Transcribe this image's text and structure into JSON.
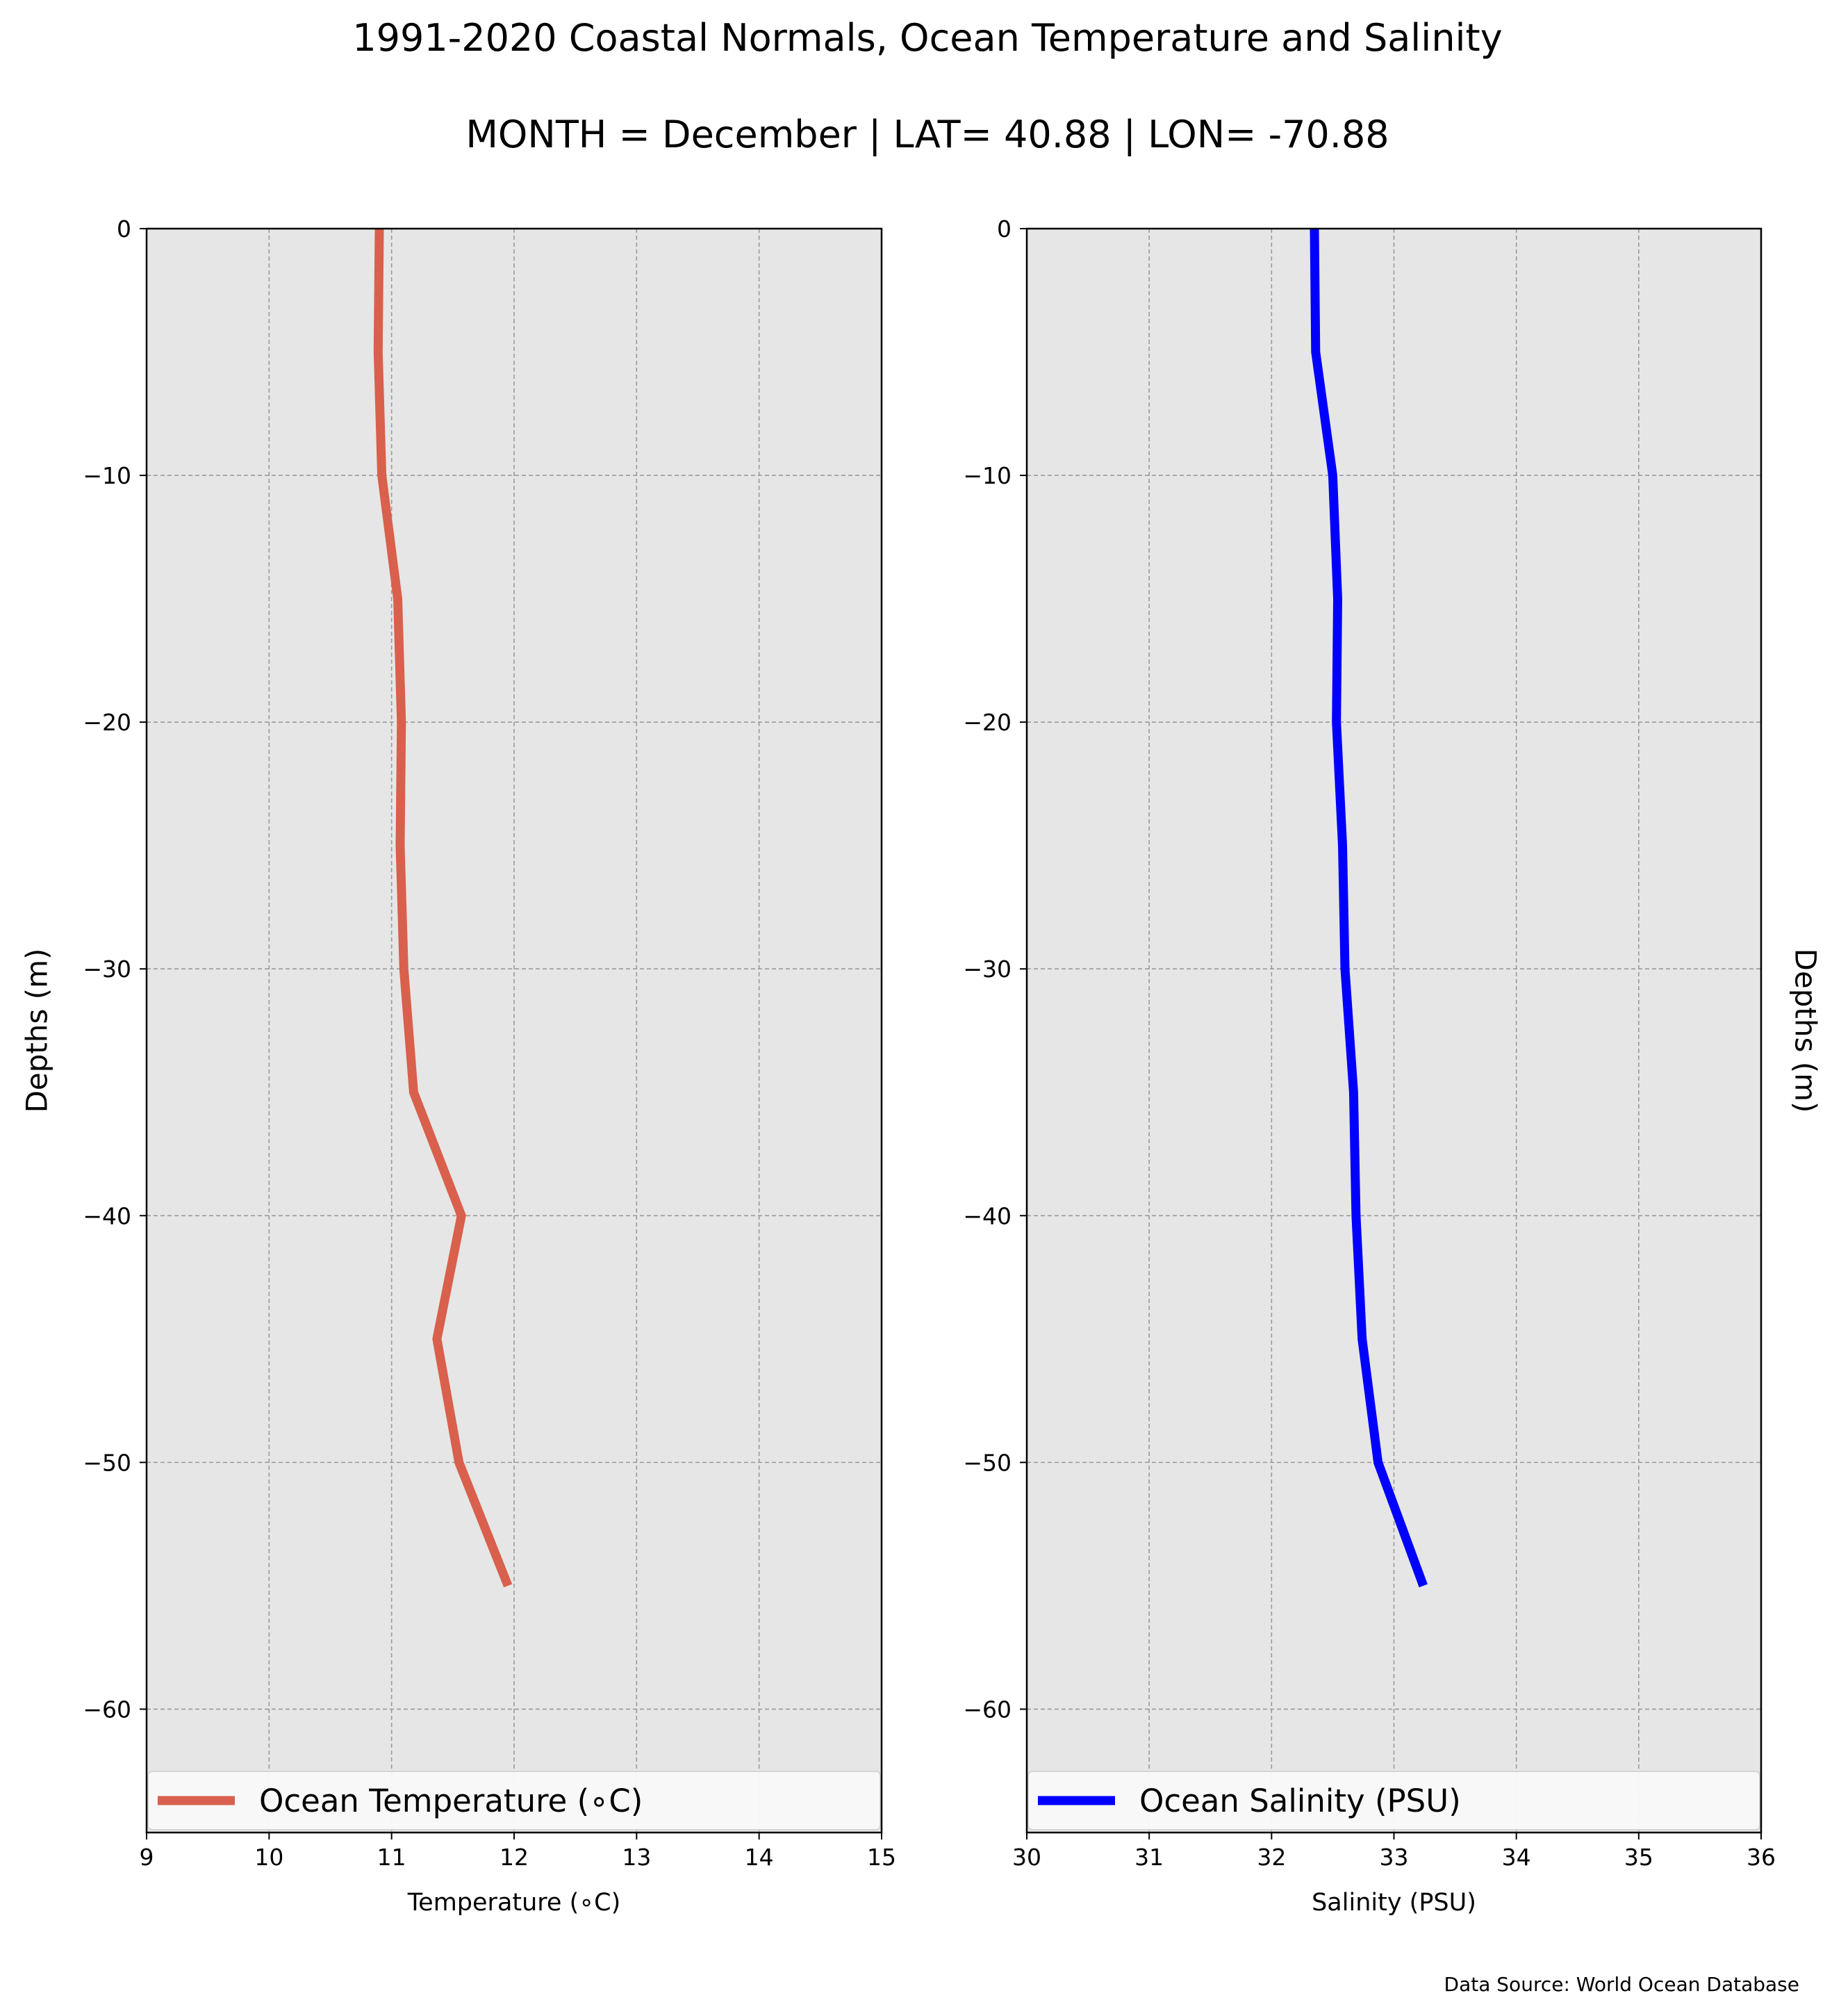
{
  "title": "1991-2020 Coastal Normals, Ocean Temperature and Salinity",
  "subtitle": "MONTH = December | LAT= 40.88 | LON= -70.88",
  "source": "Data Source: World Ocean Database",
  "chart_data": [
    {
      "type": "line",
      "orientation": "depth-profile",
      "xlabel": "Temperature ($^\\circ$C)",
      "xlabel_display": "Temperature (∘C)",
      "ylabel": "Depths (m)",
      "ylabel_side": "left",
      "xlim": [
        9,
        15
      ],
      "ylim": [
        -65,
        0
      ],
      "xticks": [
        9,
        10,
        11,
        12,
        13,
        14,
        15
      ],
      "yticks": [
        0,
        -10,
        -20,
        -30,
        -40,
        -50,
        -60
      ],
      "xtick_labels": [
        "9",
        "10",
        "11",
        "12",
        "13",
        "14",
        "15"
      ],
      "ytick_labels": [
        "0",
        "−10",
        "−20",
        "−30",
        "−40",
        "−50",
        "−60"
      ],
      "grid": true,
      "legend_position": "bottom",
      "series": [
        {
          "name": "Ocean Temperature (∘C)",
          "color": "#d9604c",
          "x": [
            10.9,
            10.89,
            10.92,
            11.05,
            11.08,
            11.07,
            11.1,
            11.18,
            11.57,
            11.37,
            11.55,
            11.95
          ],
          "y": [
            0,
            -5,
            -10,
            -15,
            -20,
            -25,
            -30,
            -35,
            -40,
            -45,
            -50,
            -55
          ]
        }
      ]
    },
    {
      "type": "line",
      "orientation": "depth-profile",
      "xlabel": "Salinity (PSU)",
      "ylabel": "Depths (m)",
      "ylabel_side": "right",
      "xlim": [
        30,
        36
      ],
      "ylim": [
        -65,
        0
      ],
      "xticks": [
        30,
        31,
        32,
        33,
        34,
        35,
        36
      ],
      "yticks": [
        0,
        -10,
        -20,
        -30,
        -40,
        -50,
        -60
      ],
      "xtick_labels": [
        "30",
        "31",
        "32",
        "33",
        "34",
        "35",
        "36"
      ],
      "ytick_labels": [
        "0",
        "−10",
        "−20",
        "−30",
        "−40",
        "−50",
        "−60"
      ],
      "grid": true,
      "legend_position": "bottom",
      "series": [
        {
          "name": "Ocean Salinity (PSU)",
          "color": "#0000ff",
          "x": [
            32.35,
            32.36,
            32.5,
            32.54,
            32.53,
            32.58,
            32.6,
            32.67,
            32.69,
            32.74,
            32.87,
            33.24
          ],
          "y": [
            0,
            -5,
            -10,
            -15,
            -20,
            -25,
            -30,
            -35,
            -40,
            -45,
            -50,
            -55
          ]
        }
      ]
    }
  ]
}
